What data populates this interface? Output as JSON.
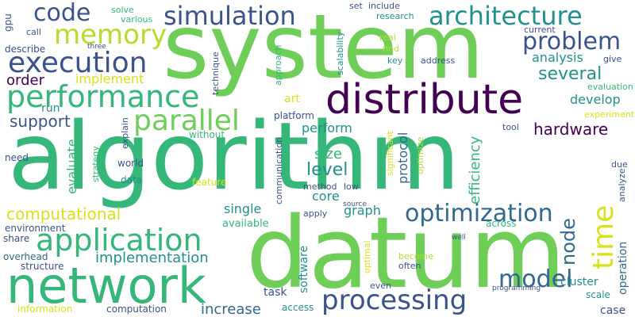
{
  "colors": {
    "background": "#ffffff",
    "purple": "#440154",
    "indigo": "#3b528b",
    "blue": "#31688e",
    "teal": "#21918c",
    "green": "#35b779",
    "lightgreen": "#6ece58",
    "yellowgreen": "#b5de2b",
    "yellow": "#d8e219"
  },
  "words": {
    "system": "system",
    "algorithm": "algorithm",
    "datum": "datum",
    "network": "network",
    "distribute": "distribute",
    "performance": "performance",
    "execution": "execution",
    "application": "application",
    "simulation": "simulation",
    "architecture": "architecture",
    "memory": "memory",
    "code": "code",
    "parallel": "parallel",
    "problem": "problem",
    "processing": "processing",
    "optimization": "optimization",
    "model": "model",
    "time": "time",
    "several": "several",
    "hardware": "hardware",
    "computational": "computational",
    "level": "level",
    "implementation": "implementation",
    "support": "support",
    "order": "order",
    "implement": "implement",
    "analysis": "analysis",
    "develop": "develop",
    "perform": "perform",
    "size": "size",
    "node": "node",
    "increase": "increase",
    "efficiency": "efficiency",
    "graph": "graph",
    "single": "single",
    "core": "core",
    "protocol": "protocol",
    "evaluate": "evaluate",
    "run": "run",
    "art": "art",
    "task": "task",
    "software": "software",
    "cluster": "cluster",
    "operation": "operation",
    "case": "case",
    "scale": "scale",
    "gpu": "gpu",
    "call": "call",
    "three": "three",
    "describe": "describe",
    "solve": "solve",
    "various": "various",
    "set": "set",
    "include": "include",
    "research": "research",
    "current": "current",
    "real": "real",
    "find": "find",
    "key": "key",
    "address": "address",
    "give": "give",
    "approach": "approach",
    "scalability": "scalability",
    "technique": "technique",
    "evaluation": "evaluation",
    "experiment": "experiment",
    "platform": "platform",
    "without": "without",
    "explain": "explain",
    "strategy": "strategy",
    "need": "need",
    "world": "world",
    "data": "data",
    "feature": "feature",
    "communication": "communication",
    "method": "method",
    "low": "low",
    "significant": "significant",
    "optimize": "optimize",
    "tool": "tool",
    "due": "due",
    "analyze": "analyze",
    "environment": "environment",
    "share": "share",
    "available": "available",
    "apply": "apply",
    "source": "source",
    "across": "across",
    "well": "well",
    "overhead": "overhead",
    "structure": "structure",
    "optimal": "optimal",
    "become": "become",
    "often": "often",
    "even": "even",
    "programming": "programming",
    "information": "information",
    "computation": "computation",
    "access": "access"
  }
}
